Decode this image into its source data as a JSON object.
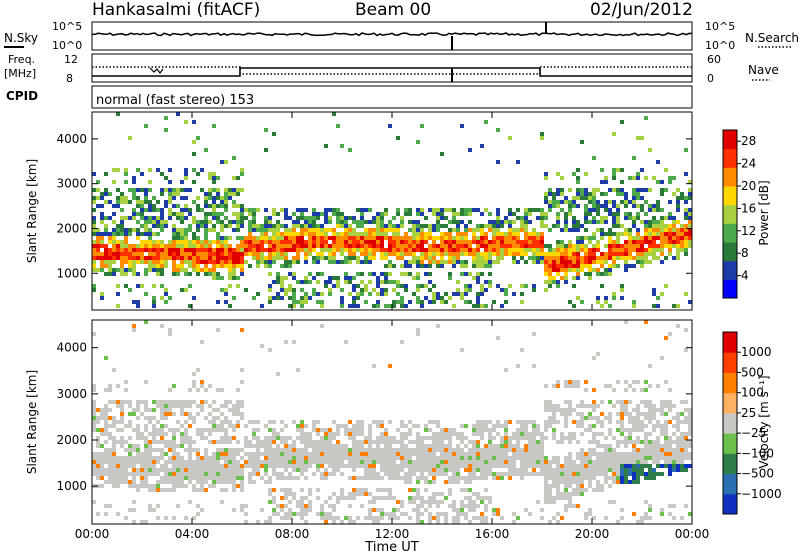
{
  "header": {
    "station": "Hankasalmi (fitACF)",
    "beam": "Beam 00",
    "date": "02/Jun/2012"
  },
  "panels": {
    "nsky": {
      "label": "N.Sky",
      "ticks": [
        "10^5",
        "10^0"
      ]
    },
    "nsearch": {
      "label": "N.Search",
      "ticks": [
        "10^5",
        "10^0"
      ]
    },
    "freq": {
      "label_top": "Freq.",
      "label_unit": "[MHz]",
      "ticks": [
        "12",
        "8"
      ]
    },
    "nave": {
      "label": "Nave",
      "ticks": [
        "60",
        "0"
      ]
    },
    "cpid": {
      "label": "CPID",
      "text": "normal (fast stereo) 153"
    }
  },
  "chart_data": [
    {
      "type": "heatmap",
      "name": "power",
      "xlabel": "Time UT",
      "ylabel": "Slant Range [km]",
      "xticks": [
        "00:00",
        "04:00",
        "08:00",
        "12:00",
        "16:00",
        "20:00",
        "00:00"
      ],
      "xlim_hours": [
        0,
        24
      ],
      "yticks": [
        "1000",
        "2000",
        "3000",
        "4000"
      ],
      "ylim": [
        180,
        4600
      ],
      "colorbar": {
        "label": "Power [dB]",
        "ticks": [
          "4",
          "8",
          "12",
          "16",
          "20",
          "24",
          "28"
        ],
        "range": [
          0,
          30
        ],
        "colors": [
          "#0000ff",
          "#1e3ca8",
          "#2b7a3a",
          "#4caa4c",
          "#a8d040",
          "#ffd700",
          "#ff8c00",
          "#ff3000",
          "#e00000"
        ]
      }
    },
    {
      "type": "heatmap",
      "name": "velocity",
      "xlabel": "Time UT",
      "ylabel": "Slant Range [km]",
      "xticks": [
        "00:00",
        "04:00",
        "08:00",
        "12:00",
        "16:00",
        "20:00",
        "00:00"
      ],
      "xlim_hours": [
        0,
        24
      ],
      "yticks": [
        "1000",
        "2000",
        "3000",
        "4000"
      ],
      "ylim": [
        180,
        4600
      ],
      "colorbar": {
        "label": "Velocity [m s⁻¹]",
        "ticks": [
          "1000",
          "500",
          "100",
          "25",
          "−25",
          "−100",
          "−500",
          "−1000"
        ],
        "colors": [
          "#1030c0",
          "#2a6fb0",
          "#2e7d4a",
          "#6ac04a",
          "#c8c8c4",
          "#ffb060",
          "#ff8000",
          "#ff4000",
          "#e00000"
        ]
      }
    }
  ],
  "colors": {
    "frame": "#000000",
    "ground_scatter": "#c8c8c4"
  }
}
